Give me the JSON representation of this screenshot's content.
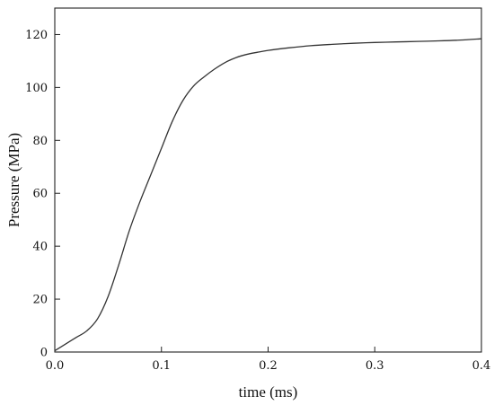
{
  "chart_data": {
    "type": "line",
    "title": "",
    "xlabel": "time (ms)",
    "ylabel": "Pressure (MPa)",
    "xlim": [
      0,
      0.4
    ],
    "ylim": [
      0,
      130
    ],
    "grid": false,
    "x_ticks": [
      {
        "value": 0.0,
        "label": "0.0"
      },
      {
        "value": 0.1,
        "label": "0.1"
      },
      {
        "value": 0.2,
        "label": "0.2"
      },
      {
        "value": 0.3,
        "label": "0.3"
      },
      {
        "value": 0.4,
        "label": "0.4"
      }
    ],
    "y_ticks": [
      {
        "value": 0,
        "label": "0"
      },
      {
        "value": 20,
        "label": "20"
      },
      {
        "value": 40,
        "label": "40"
      },
      {
        "value": 60,
        "label": "60"
      },
      {
        "value": 80,
        "label": "80"
      },
      {
        "value": 100,
        "label": "100"
      },
      {
        "value": 120,
        "label": "120"
      }
    ],
    "series": [
      {
        "color": "#333333",
        "x": [
          0.0,
          0.01,
          0.02,
          0.03,
          0.04,
          0.05,
          0.06,
          0.07,
          0.08,
          0.09,
          0.1,
          0.11,
          0.12,
          0.13,
          0.14,
          0.15,
          0.16,
          0.17,
          0.18,
          0.19,
          0.2,
          0.22,
          0.24,
          0.26,
          0.28,
          0.3,
          0.32,
          0.34,
          0.36,
          0.38,
          0.4
        ],
        "y": [
          0.5,
          3.0,
          5.5,
          8.0,
          12.5,
          21.0,
          33.0,
          46.0,
          57.0,
          67.0,
          77.0,
          87.0,
          95.0,
          100.5,
          104.0,
          107.0,
          109.5,
          111.3,
          112.5,
          113.3,
          114.0,
          115.0,
          115.8,
          116.3,
          116.7,
          117.0,
          117.2,
          117.4,
          117.6,
          117.9,
          118.4
        ]
      }
    ]
  }
}
